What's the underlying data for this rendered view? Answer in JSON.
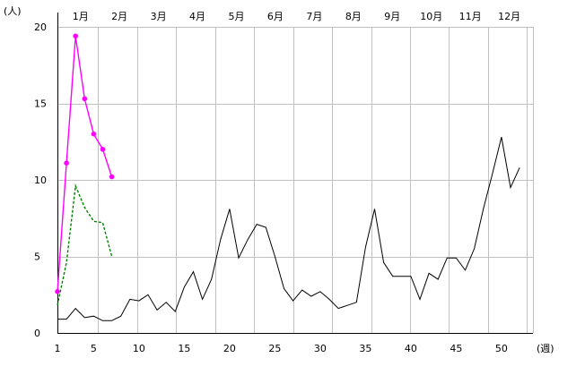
{
  "chart_data": {
    "type": "line",
    "y_unit": "(人)",
    "x_unit": "(週)",
    "ylim": [
      0,
      20
    ],
    "xlim": [
      1,
      52
    ],
    "y_ticks": [
      0,
      5,
      10,
      15,
      20
    ],
    "x_ticks": [
      1,
      5,
      10,
      15,
      20,
      25,
      30,
      35,
      40,
      45,
      50
    ],
    "months": [
      "1月",
      "2月",
      "3月",
      "4月",
      "5月",
      "6月",
      "7月",
      "8月",
      "9月",
      "10月",
      "11月",
      "12月"
    ],
    "grid": true,
    "series": [
      {
        "style": "solid",
        "color": "#000000",
        "x": [
          1,
          2,
          3,
          4,
          5,
          6,
          7,
          8,
          9,
          10,
          11,
          12,
          13,
          14,
          15,
          16,
          17,
          18,
          19,
          20,
          21,
          22,
          23,
          24,
          25,
          26,
          27,
          28,
          29,
          30,
          31,
          32,
          33,
          34,
          35,
          36,
          37,
          38,
          39,
          40,
          41,
          42,
          43,
          44,
          45,
          46,
          47,
          48,
          49,
          50,
          51,
          52
        ],
        "values": [
          0.9,
          0.9,
          1.6,
          1.0,
          1.1,
          0.8,
          0.8,
          1.1,
          2.2,
          2.1,
          2.5,
          1.5,
          2.0,
          1.4,
          3.0,
          4.0,
          2.2,
          3.5,
          6.1,
          8.1,
          4.9,
          6.1,
          7.1,
          6.9,
          5.0,
          2.9,
          2.1,
          2.8,
          2.4,
          2.7,
          2.2,
          1.6,
          1.8,
          2.0,
          5.6,
          8.1,
          4.6,
          3.7,
          3.7,
          3.7,
          2.2,
          3.9,
          3.5,
          4.9,
          4.9,
          4.1,
          5.5,
          8.1,
          10.4,
          12.8,
          9.5,
          10.8
        ]
      },
      {
        "style": "solid-markers",
        "color": "#ff00ff",
        "x": [
          1,
          2,
          3,
          4,
          5,
          6,
          7
        ],
        "values": [
          2.7,
          11.1,
          19.4,
          15.3,
          13.0,
          12.0,
          10.2
        ]
      },
      {
        "style": "dashed",
        "color": "#008000",
        "x": [
          1,
          2,
          3,
          4,
          5,
          6,
          7
        ],
        "values": [
          1.8,
          4.6,
          9.6,
          8.2,
          7.3,
          7.2,
          5.0
        ]
      }
    ]
  },
  "colors": {
    "grid": "#c0c0c0",
    "axis": "#000000"
  }
}
